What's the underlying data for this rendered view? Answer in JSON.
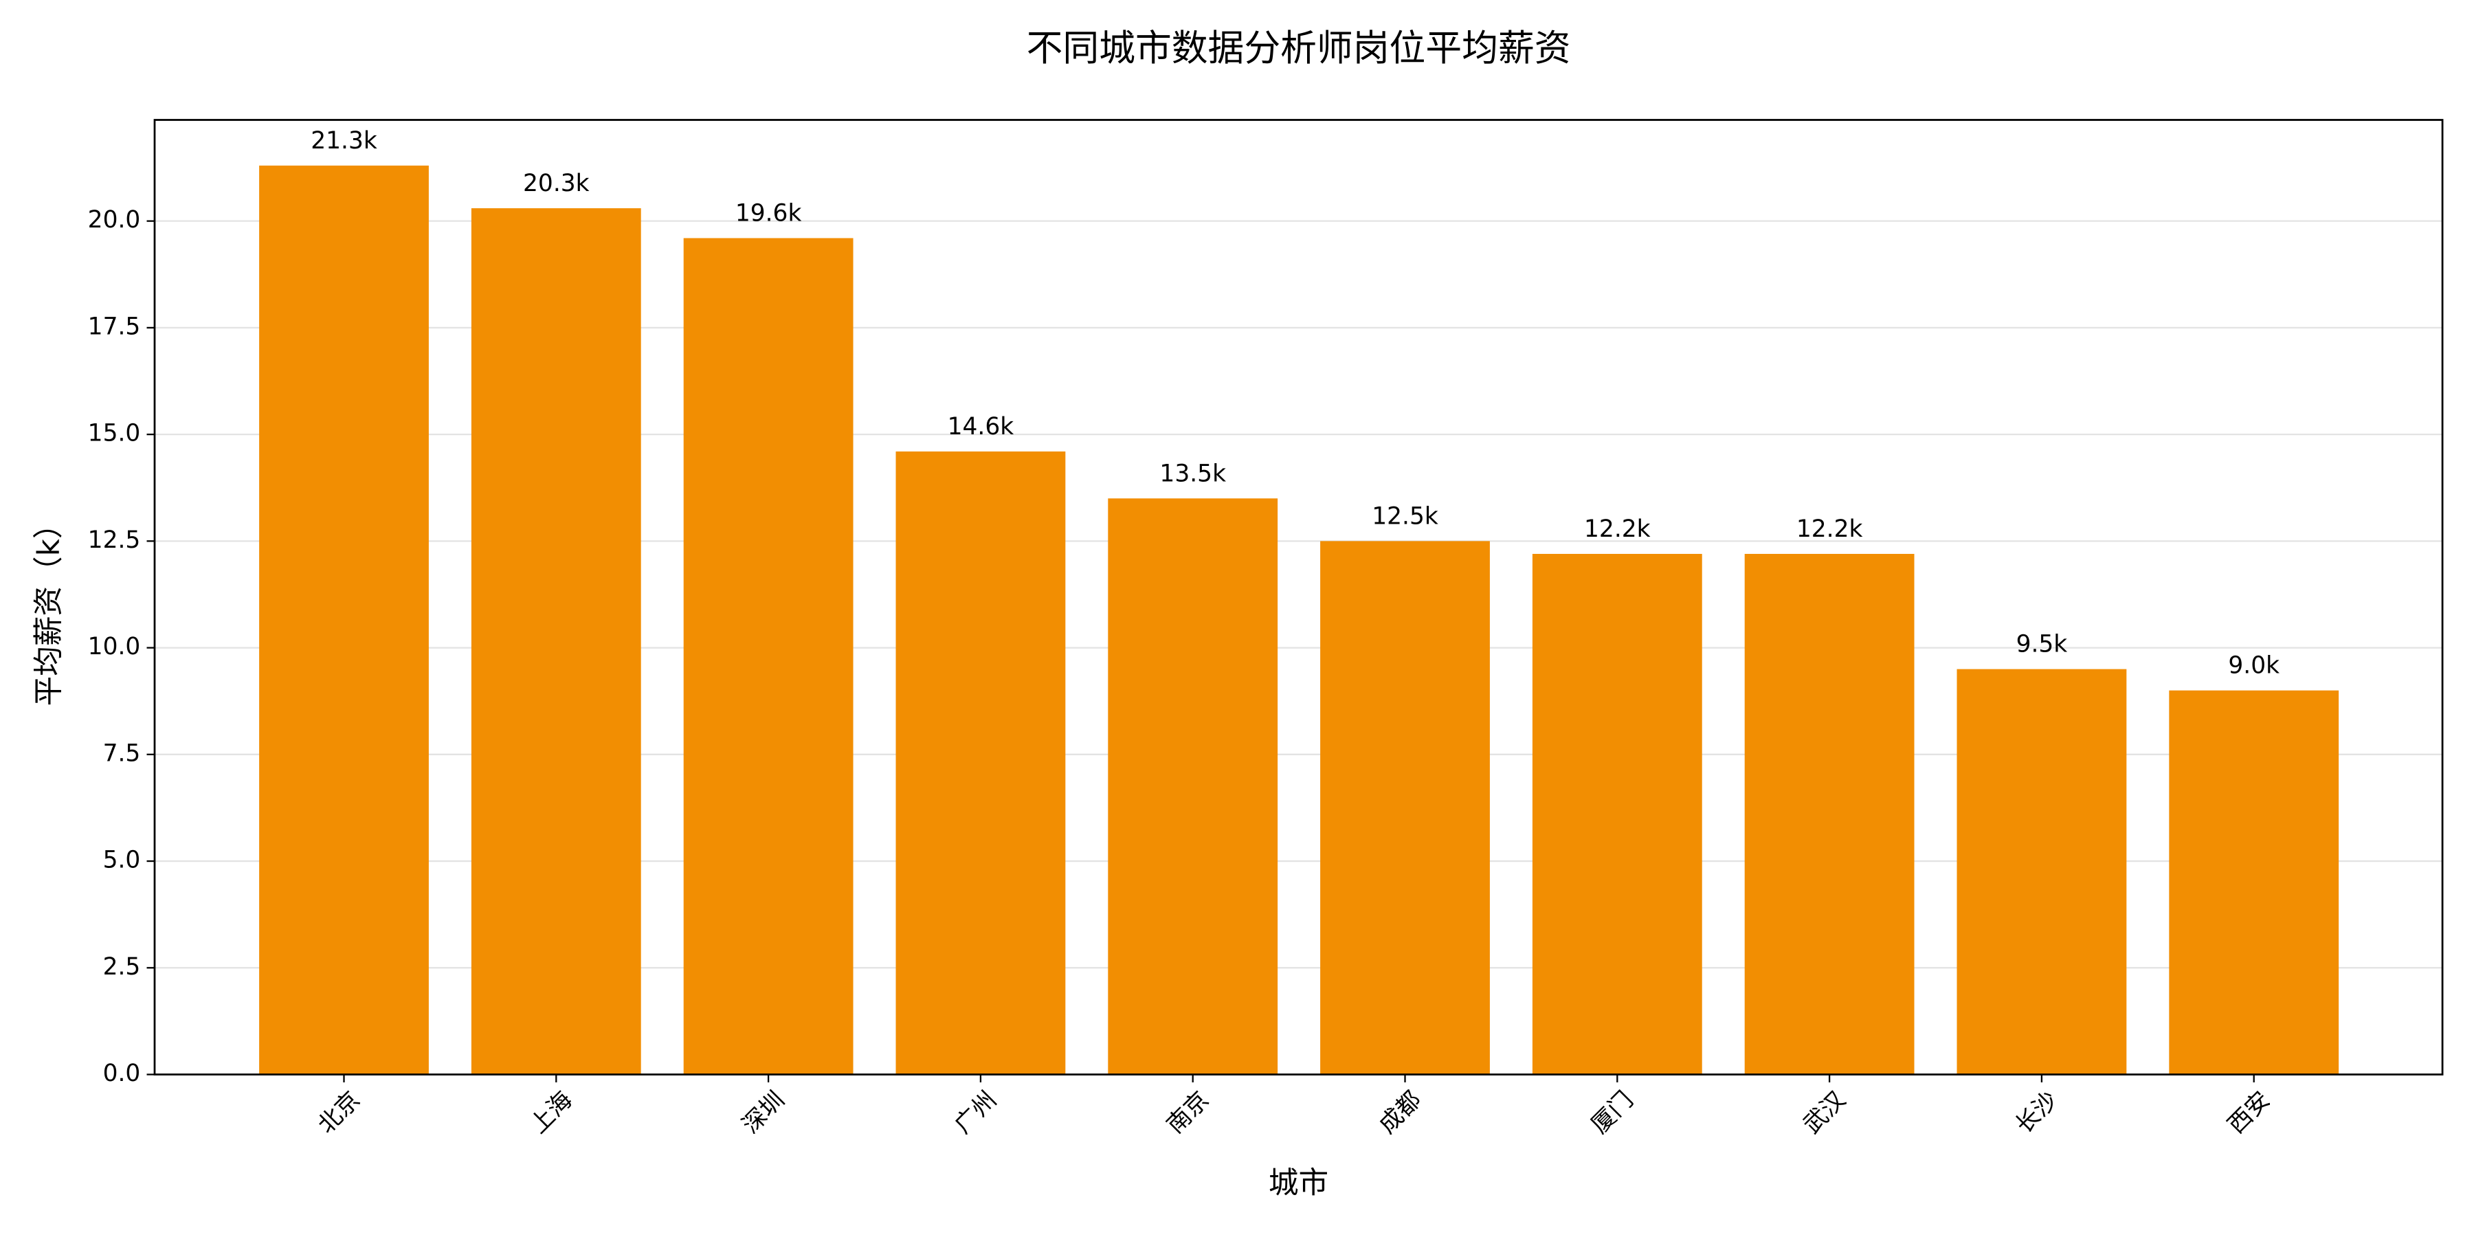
{
  "chart_data": {
    "type": "bar",
    "title": "不同城市数据分析师岗位平均薪资",
    "x_label": "城市",
    "y_label": "平均薪资（k）",
    "categories": [
      "北京",
      "上海",
      "深圳",
      "广州",
      "南京",
      "成都",
      "厦门",
      "武汉",
      "长沙",
      "西安"
    ],
    "values": [
      21.3,
      20.3,
      19.6,
      14.6,
      13.5,
      12.5,
      12.2,
      12.2,
      9.5,
      9.0
    ],
    "value_labels": [
      "21.3k",
      "20.3k",
      "19.6k",
      "14.6k",
      "13.5k",
      "12.5k",
      "12.2k",
      "12.2k",
      "9.5k",
      "9.0k"
    ],
    "color": "#f28e02",
    "ylim": [
      0,
      22.37
    ],
    "yticks": [
      {
        "value": 0,
        "label": "0.0"
      },
      {
        "value": 2.5,
        "label": "2.5"
      },
      {
        "value": 5,
        "label": "5.0"
      },
      {
        "value": 7.5,
        "label": "7.5"
      },
      {
        "value": 10,
        "label": "10.0"
      },
      {
        "value": 12.5,
        "label": "12.5"
      },
      {
        "value": 15,
        "label": "15.0"
      },
      {
        "value": 17.5,
        "label": "17.5"
      },
      {
        "value": 20,
        "label": "20.0"
      }
    ],
    "grid": true
  }
}
